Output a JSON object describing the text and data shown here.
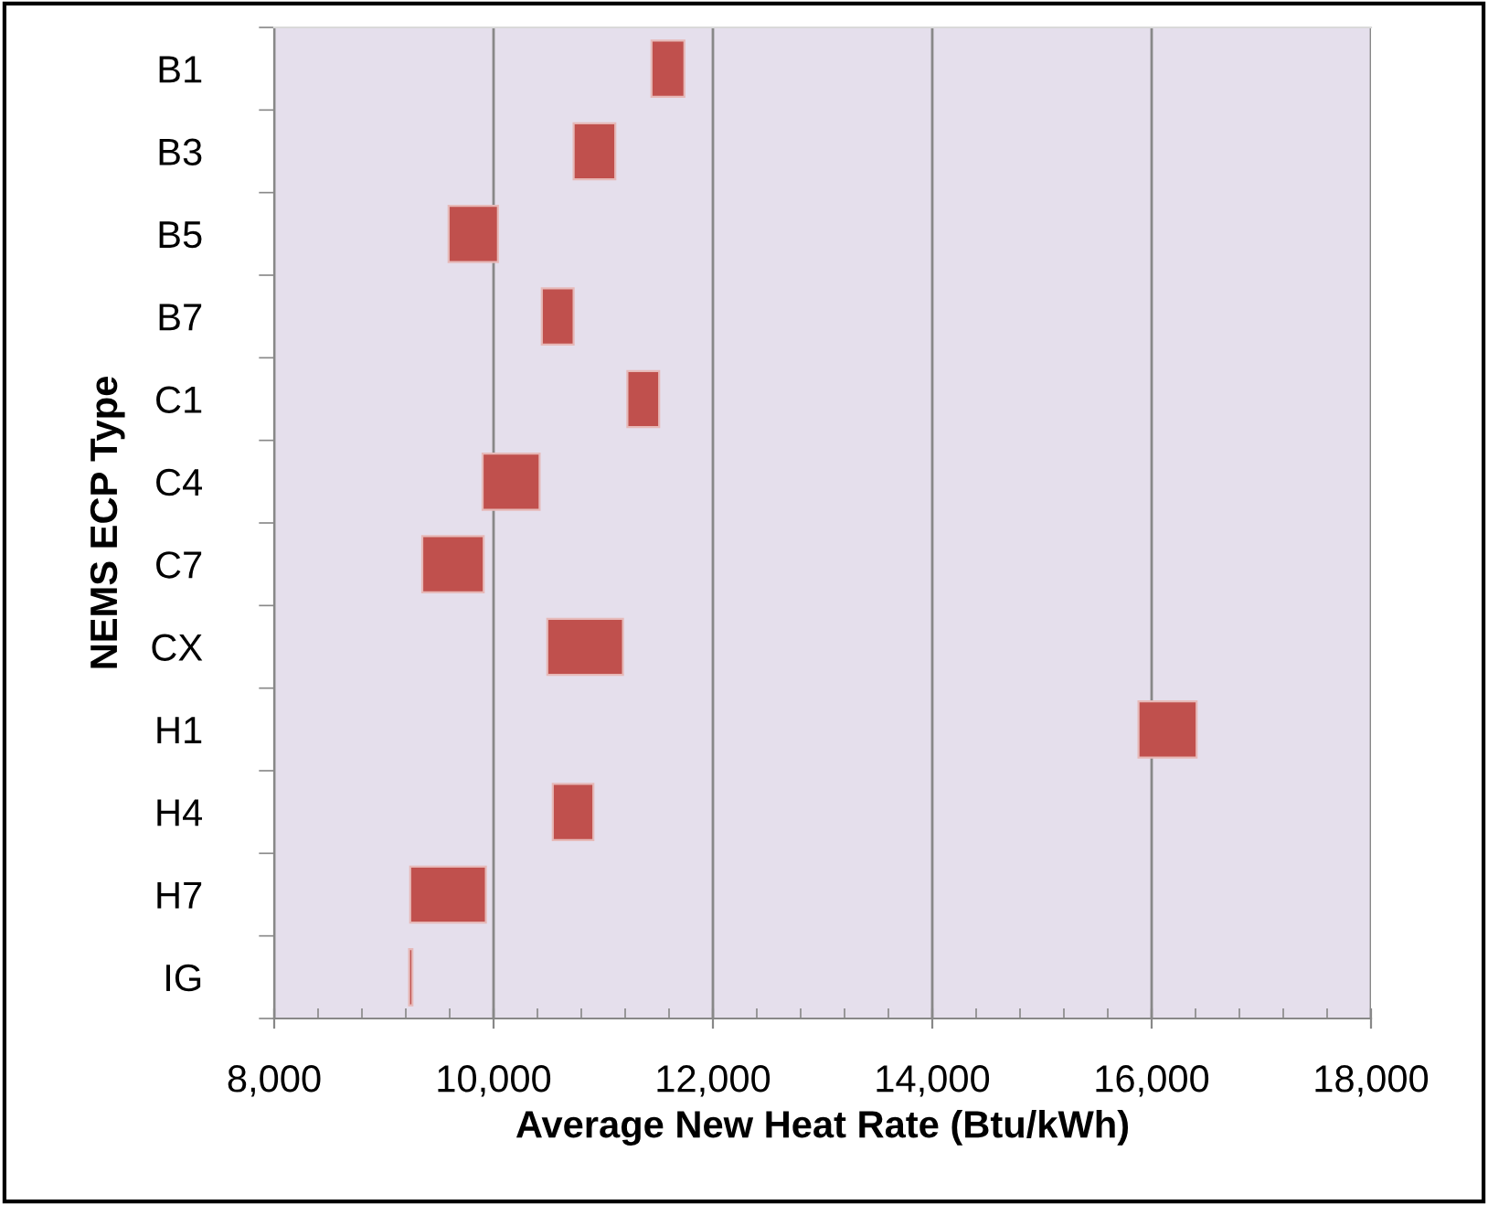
{
  "chart_data": {
    "type": "bar",
    "orientation": "horizontal",
    "xlabel": "Average New Heat Rate (Btu/kWh)",
    "ylabel": "NEMS ECP Type",
    "categories": [
      "B1",
      "B3",
      "B5",
      "B7",
      "C1",
      "C4",
      "C7",
      "CX",
      "H1",
      "H4",
      "H7",
      "IG"
    ],
    "base": [
      11440,
      10730,
      9590,
      10440,
      11220,
      9900,
      9350,
      10490,
      15880,
      10540,
      9240,
      9230
    ],
    "values": [
      300,
      380,
      450,
      290,
      290,
      520,
      560,
      690,
      530,
      370,
      690,
      30
    ],
    "color": "#c0504d",
    "xlim": [
      8000,
      18000
    ],
    "xticks": [
      {
        "value": 8000,
        "label": "8,000"
      },
      {
        "value": 10000,
        "label": "10,000"
      },
      {
        "value": 12000,
        "label": "12,000"
      },
      {
        "value": 14000,
        "label": "14,000"
      },
      {
        "value": 16000,
        "label": "16,000"
      },
      {
        "value": 18000,
        "label": "18,000"
      }
    ],
    "grid": "x"
  }
}
